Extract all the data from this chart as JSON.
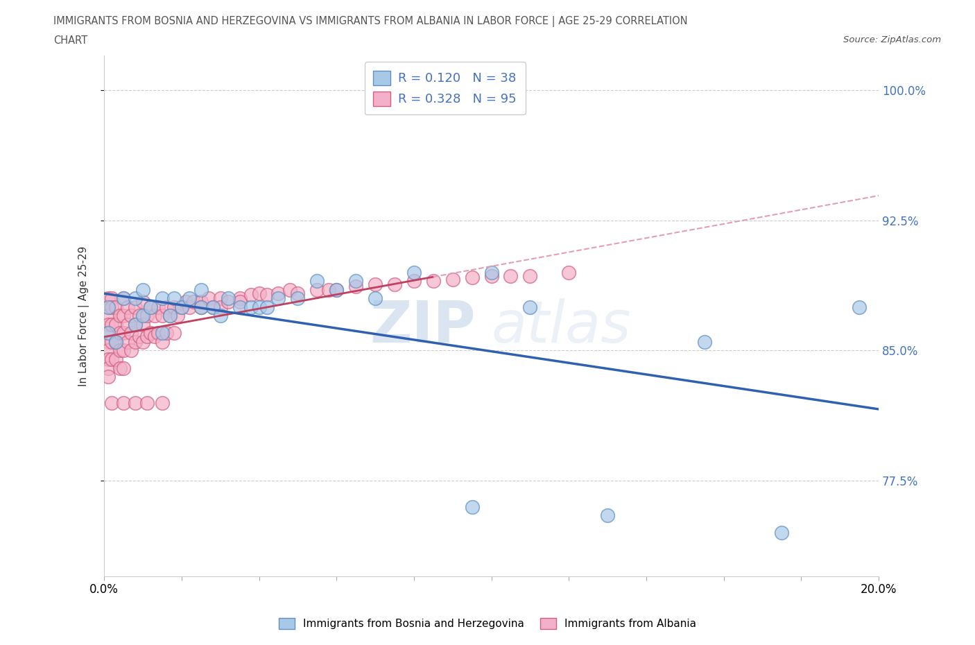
{
  "title_line1": "IMMIGRANTS FROM BOSNIA AND HERZEGOVINA VS IMMIGRANTS FROM ALBANIA IN LABOR FORCE | AGE 25-29 CORRELATION",
  "title_line2": "CHART",
  "source_text": "Source: ZipAtlas.com",
  "ylabel": "In Labor Force | Age 25-29",
  "xlim": [
    0.0,
    0.2
  ],
  "ylim": [
    0.72,
    1.02
  ],
  "ytick_values": [
    0.775,
    0.85,
    0.925,
    1.0
  ],
  "bosnia_color": "#a8c8e8",
  "albania_color": "#f4b0c8",
  "bosnia_edge": "#6090c0",
  "albania_edge": "#d06080",
  "bosnia_line_color": "#3060b0",
  "albania_line_color": "#c04060",
  "albania_dash_color": "#e0a0b0",
  "bosnia_R": 0.12,
  "bosnia_N": 38,
  "albania_R": 0.328,
  "albania_N": 95,
  "legend_label_bosnia": "Immigrants from Bosnia and Herzegovina",
  "legend_label_albania": "Immigrants from Albania",
  "watermark_zip": "ZIP",
  "watermark_atlas": "atlas",
  "bosnia_x": [
    0.001,
    0.001,
    0.003,
    0.005,
    0.008,
    0.008,
    0.01,
    0.01,
    0.012,
    0.015,
    0.015,
    0.017,
    0.018,
    0.02,
    0.022,
    0.025,
    0.025,
    0.028,
    0.03,
    0.032,
    0.035,
    0.038,
    0.04,
    0.042,
    0.045,
    0.05,
    0.055,
    0.06,
    0.065,
    0.07,
    0.08,
    0.095,
    0.1,
    0.11,
    0.13,
    0.155,
    0.175,
    0.195
  ],
  "bosnia_y": [
    0.86,
    0.875,
    0.855,
    0.88,
    0.865,
    0.88,
    0.87,
    0.885,
    0.875,
    0.86,
    0.88,
    0.87,
    0.88,
    0.875,
    0.88,
    0.875,
    0.885,
    0.875,
    0.87,
    0.88,
    0.875,
    0.875,
    0.875,
    0.875,
    0.88,
    0.88,
    0.89,
    0.885,
    0.89,
    0.88,
    0.895,
    0.76,
    0.895,
    0.875,
    0.755,
    0.855,
    0.745,
    0.875
  ],
  "albania_x": [
    0.001,
    0.001,
    0.001,
    0.001,
    0.001,
    0.001,
    0.001,
    0.001,
    0.001,
    0.001,
    0.002,
    0.002,
    0.002,
    0.002,
    0.002,
    0.003,
    0.003,
    0.003,
    0.003,
    0.004,
    0.004,
    0.004,
    0.004,
    0.005,
    0.005,
    0.005,
    0.005,
    0.005,
    0.006,
    0.006,
    0.006,
    0.007,
    0.007,
    0.007,
    0.008,
    0.008,
    0.008,
    0.009,
    0.009,
    0.01,
    0.01,
    0.01,
    0.011,
    0.011,
    0.012,
    0.012,
    0.013,
    0.013,
    0.014,
    0.014,
    0.015,
    0.015,
    0.016,
    0.016,
    0.017,
    0.018,
    0.018,
    0.019,
    0.02,
    0.021,
    0.022,
    0.023,
    0.025,
    0.025,
    0.027,
    0.028,
    0.03,
    0.03,
    0.032,
    0.035,
    0.035,
    0.038,
    0.04,
    0.042,
    0.045,
    0.048,
    0.05,
    0.055,
    0.058,
    0.06,
    0.065,
    0.07,
    0.075,
    0.08,
    0.085,
    0.09,
    0.095,
    0.1,
    0.105,
    0.11,
    0.12,
    0.002,
    0.005,
    0.008,
    0.011,
    0.015
  ],
  "albania_y": [
    0.88,
    0.875,
    0.87,
    0.865,
    0.86,
    0.855,
    0.85,
    0.845,
    0.84,
    0.835,
    0.88,
    0.875,
    0.865,
    0.855,
    0.845,
    0.875,
    0.865,
    0.855,
    0.845,
    0.87,
    0.86,
    0.85,
    0.84,
    0.88,
    0.87,
    0.86,
    0.85,
    0.84,
    0.875,
    0.865,
    0.855,
    0.87,
    0.86,
    0.85,
    0.875,
    0.865,
    0.855,
    0.87,
    0.858,
    0.878,
    0.865,
    0.855,
    0.87,
    0.858,
    0.875,
    0.86,
    0.87,
    0.858,
    0.875,
    0.86,
    0.87,
    0.855,
    0.875,
    0.86,
    0.87,
    0.875,
    0.86,
    0.87,
    0.875,
    0.878,
    0.875,
    0.878,
    0.878,
    0.875,
    0.88,
    0.875,
    0.88,
    0.875,
    0.878,
    0.88,
    0.878,
    0.882,
    0.883,
    0.882,
    0.883,
    0.885,
    0.883,
    0.885,
    0.885,
    0.885,
    0.887,
    0.888,
    0.888,
    0.89,
    0.89,
    0.891,
    0.892,
    0.893,
    0.893,
    0.893,
    0.895,
    0.82,
    0.82,
    0.82,
    0.82,
    0.82
  ]
}
